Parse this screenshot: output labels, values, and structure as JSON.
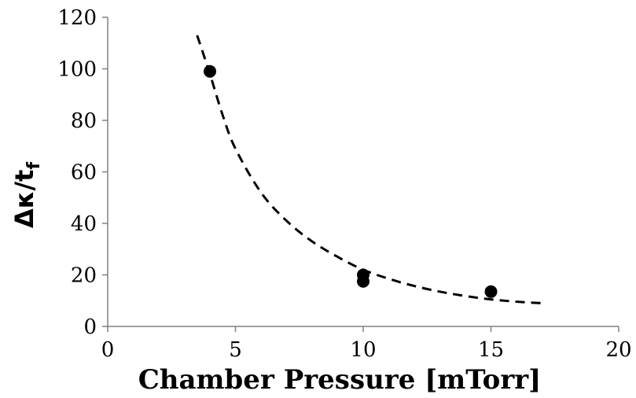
{
  "chart_data": {
    "type": "scatter",
    "xlabel": "Chamber Pressure [mTorr]",
    "ylabel": {
      "main": "Δκ/t",
      "subscript": "f"
    },
    "xlim": [
      0,
      20
    ],
    "ylim": [
      0,
      120
    ],
    "x_ticks": [
      "0",
      "5",
      "10",
      "15",
      "20"
    ],
    "y_ticks": [
      "0",
      "20",
      "40",
      "60",
      "80",
      "100",
      "120"
    ],
    "grid": false,
    "legend": "none",
    "series": [
      {
        "marker": "filled-circle",
        "color": "#000000",
        "points": [
          {
            "x": 4,
            "y": 99
          },
          {
            "x": 10,
            "y": 20
          },
          {
            "x": 10,
            "y": 17.5
          },
          {
            "x": 15,
            "y": 13.5
          }
        ]
      }
    ],
    "trendline": {
      "style": "dashed",
      "color": "#000000",
      "x": [
        3.5,
        4,
        4.5,
        5,
        6,
        7,
        8,
        9,
        10,
        11,
        12,
        13,
        14,
        15,
        16,
        17
      ],
      "y": [
        113,
        98,
        82,
        69,
        52,
        41,
        33,
        27,
        22,
        18.5,
        15.7,
        13.5,
        11.8,
        10.5,
        9.6,
        9
      ]
    }
  }
}
